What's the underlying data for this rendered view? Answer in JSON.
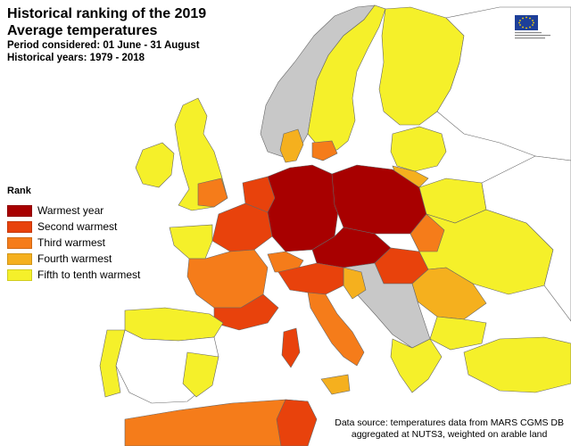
{
  "title": {
    "line1": "Historical ranking of the 2019",
    "line2": "Average temperatures",
    "period": "Period considered: 01 June - 31 August",
    "years": "Historical years: 1979 - 2018"
  },
  "legend": {
    "heading": "Rank",
    "items": [
      {
        "label": "Warmest year",
        "color": "#a80000"
      },
      {
        "label": "Second warmest",
        "color": "#e8420c"
      },
      {
        "label": "Third warmest",
        "color": "#f57c1a"
      },
      {
        "label": "Fourth warmest",
        "color": "#f5b01e"
      },
      {
        "label": "Fifth to tenth warmest",
        "color": "#f5f02a"
      }
    ]
  },
  "colors": {
    "no_data": "#c8c8c8",
    "not_ranked": "#ffffff",
    "sea": "#ffffff",
    "borders": "#555555"
  },
  "source": {
    "line1": "Data source: temperatures data from MARS CGMS DB",
    "line2": "aggregated at NUTS3, weighted on arable land"
  },
  "logo": {
    "icon": "eu-flag-icon"
  }
}
